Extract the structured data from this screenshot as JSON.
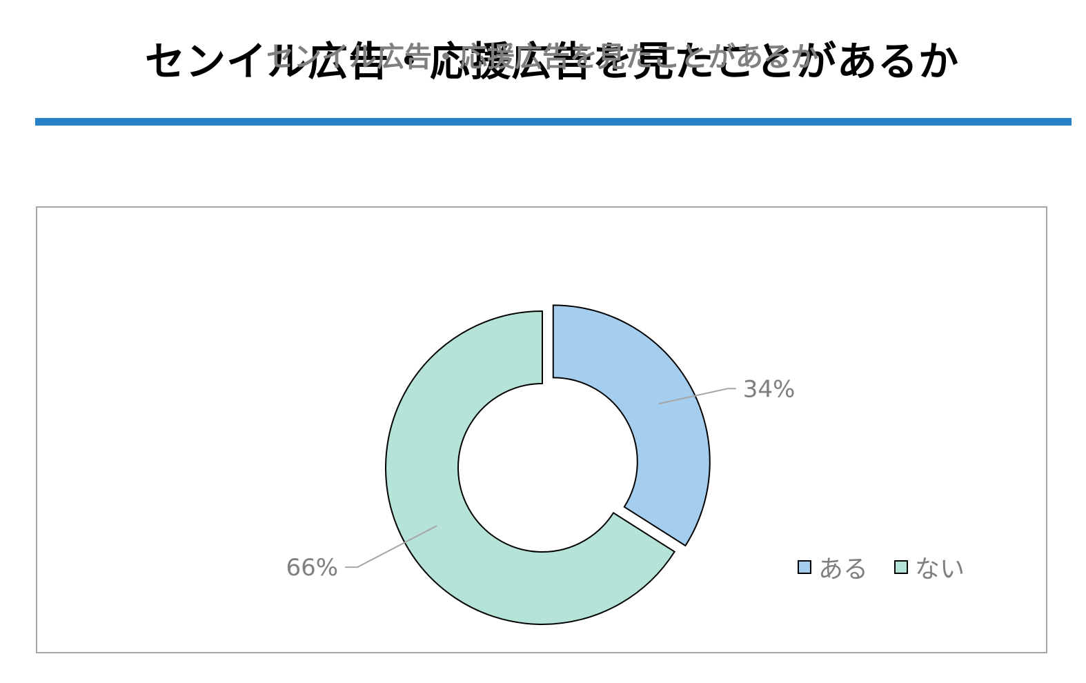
{
  "page": {
    "title": "センイル広告・応援広告を見たことがあるか",
    "rule_color": "#2681c8"
  },
  "chart_data": {
    "type": "pie",
    "variant": "doughnut",
    "title": "センイル広告・応援広告を見たことがあるか",
    "categories": [
      "ある",
      "ない"
    ],
    "values": [
      34,
      66
    ],
    "value_labels": [
      "34%",
      "66%"
    ],
    "colors": [
      "#a5cdee",
      "#b5e3d7"
    ],
    "exploded_slice": "ある",
    "legend_position": "bottom-right"
  }
}
